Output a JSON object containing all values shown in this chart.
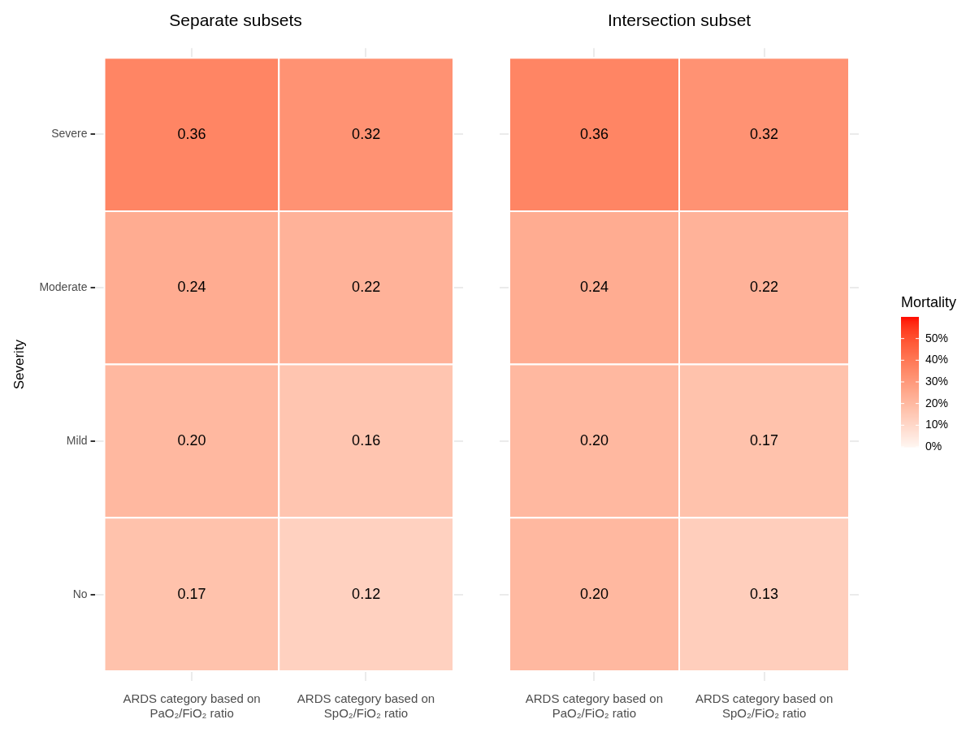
{
  "chart_data": [
    {
      "type": "heatmap",
      "title": "Separate subsets",
      "ylabel": "Severity",
      "categories": [
        "ARDS category based on PaO₂/FiO₂ ratio",
        "ARDS category based on SpO₂/FiO₂ ratio"
      ],
      "y_categories": [
        "Severe",
        "Moderate",
        "Mild",
        "No"
      ],
      "cells": [
        [
          0.36,
          0.32
        ],
        [
          0.24,
          0.22
        ],
        [
          0.2,
          0.16
        ],
        [
          0.17,
          0.12
        ]
      ],
      "cell_labels": [
        [
          "0.36",
          "0.32"
        ],
        [
          "0.24",
          "0.22"
        ],
        [
          "0.20",
          "0.16"
        ],
        [
          "0.17",
          "0.12"
        ]
      ],
      "grid": true
    },
    {
      "type": "heatmap",
      "title": "Intersection subset",
      "categories": [
        "ARDS category based on PaO₂/FiO₂ ratio",
        "ARDS category based on SpO₂/FiO₂ ratio"
      ],
      "y_categories": [
        null,
        null,
        null,
        null
      ],
      "cells": [
        [
          0.36,
          0.32
        ],
        [
          0.24,
          0.22
        ],
        [
          0.2,
          0.17
        ],
        [
          0.2,
          0.13
        ]
      ],
      "cell_labels": [
        [
          "0.36",
          "0.32"
        ],
        [
          "0.24",
          "0.22"
        ],
        [
          "0.20",
          "0.17"
        ],
        [
          "0.20",
          "0.13"
        ]
      ],
      "grid": true,
      "tick_labels": "x",
      "clabel": "Mortality",
      "clim": [
        0,
        0.6
      ],
      "cticks": [
        {
          "value": 0,
          "label": "0%"
        },
        {
          "value": 0.1,
          "label": "10%"
        },
        {
          "value": 0.2,
          "label": "20%"
        },
        {
          "value": 0.3,
          "label": "30%"
        },
        {
          "value": 0.4,
          "label": "40%"
        },
        {
          "value": 0.5,
          "label": "50%"
        }
      ]
    }
  ]
}
